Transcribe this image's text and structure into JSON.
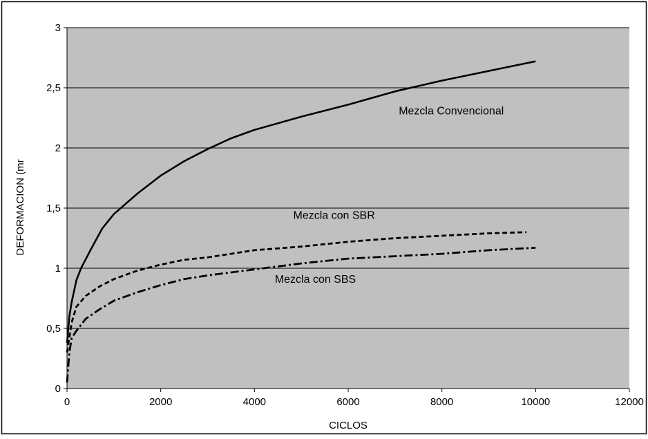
{
  "chart_data": {
    "type": "line",
    "title": "",
    "xlabel": "CICLOS",
    "ylabel": "DEFORMACION (mr",
    "xlim": [
      0,
      12000
    ],
    "ylim": [
      0,
      3
    ],
    "x_ticks": [
      "0",
      "2000",
      "4000",
      "6000",
      "8000",
      "10000",
      "12000"
    ],
    "y_ticks": [
      "0",
      "0,5",
      "1",
      "1,5",
      "2",
      "2,5",
      "3"
    ],
    "grid": "horizontal",
    "plot_background": "#c0c0c0",
    "series": [
      {
        "name": "Mezcla Convencional",
        "style": "solid",
        "x": [
          0,
          50,
          100,
          200,
          300,
          500,
          750,
          1000,
          1500,
          2000,
          2500,
          3000,
          3500,
          4000,
          5000,
          6000,
          7000,
          8000,
          9000,
          10000
        ],
        "y": [
          0.38,
          0.6,
          0.72,
          0.9,
          1.0,
          1.15,
          1.33,
          1.45,
          1.62,
          1.77,
          1.89,
          1.99,
          2.08,
          2.15,
          2.26,
          2.36,
          2.47,
          2.56,
          2.64,
          2.72
        ]
      },
      {
        "name": "Mezcla con SBR",
        "style": "dashed",
        "x": [
          0,
          100,
          200,
          400,
          700,
          1000,
          1500,
          2000,
          2500,
          3000,
          3500,
          4000,
          5000,
          6000,
          7000,
          8000,
          9000,
          9800
        ],
        "y": [
          0.3,
          0.55,
          0.68,
          0.77,
          0.85,
          0.91,
          0.98,
          1.03,
          1.07,
          1.09,
          1.12,
          1.15,
          1.18,
          1.22,
          1.25,
          1.27,
          1.29,
          1.3
        ]
      },
      {
        "name": "Mezcla con SBS",
        "style": "dash-dot",
        "x": [
          0,
          50,
          100,
          200,
          400,
          700,
          1000,
          1500,
          2000,
          2500,
          3000,
          4000,
          5000,
          6000,
          7000,
          8000,
          9000,
          10000
        ],
        "y": [
          0.05,
          0.3,
          0.42,
          0.48,
          0.58,
          0.66,
          0.73,
          0.8,
          0.86,
          0.91,
          0.94,
          0.99,
          1.04,
          1.08,
          1.1,
          1.12,
          1.15,
          1.17
        ]
      }
    ],
    "annotations": [
      {
        "text": "Mezcla Convencional",
        "x": 8200,
        "y": 2.28
      },
      {
        "text": "Mezcla con SBR",
        "x": 5700,
        "y": 1.41
      },
      {
        "text": "Mezcla con SBS",
        "x": 5300,
        "y": 0.88
      }
    ]
  }
}
